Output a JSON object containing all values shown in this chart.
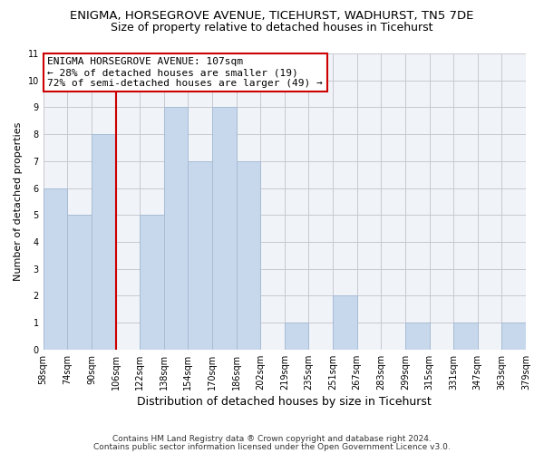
{
  "title": "ENIGMA, HORSEGROVE AVENUE, TICEHURST, WADHURST, TN5 7DE",
  "subtitle": "Size of property relative to detached houses in Ticehurst",
  "xlabel": "Distribution of detached houses by size in Ticehurst",
  "ylabel": "Number of detached properties",
  "footnote1": "Contains HM Land Registry data ® Crown copyright and database right 2024.",
  "footnote2": "Contains public sector information licensed under the Open Government Licence v3.0.",
  "bar_labels": [
    "58sqm",
    "74sqm",
    "90sqm",
    "106sqm",
    "122sqm",
    "138sqm",
    "154sqm",
    "170sqm",
    "186sqm",
    "202sqm",
    "219sqm",
    "235sqm",
    "251sqm",
    "267sqm",
    "283sqm",
    "299sqm",
    "315sqm",
    "331sqm",
    "347sqm",
    "363sqm",
    "379sqm"
  ],
  "bar_values": [
    6,
    5,
    8,
    0,
    5,
    9,
    7,
    9,
    7,
    0,
    1,
    0,
    2,
    0,
    0,
    1,
    0,
    1,
    0,
    1
  ],
  "bar_color": "#c8d8ec",
  "bar_edge_color": "#a8bcd4",
  "property_line_x": 3,
  "property_line_color": "#cc0000",
  "annotation_line1": "ENIGMA HORSEGROVE AVENUE: 107sqm",
  "annotation_line2": "← 28% of detached houses are smaller (19)",
  "annotation_line3": "72% of semi-detached houses are larger (49) →",
  "annotation_box_facecolor": "#ffffff",
  "annotation_box_edgecolor": "#cc0000",
  "ylim": [
    0,
    11
  ],
  "yticks": [
    0,
    1,
    2,
    3,
    4,
    5,
    6,
    7,
    8,
    9,
    10,
    11
  ],
  "grid_color": "#c8c8d0",
  "bg_color": "#f0f4f8",
  "plot_bg_color": "#f0f4f8",
  "title_fontsize": 9.5,
  "subtitle_fontsize": 9,
  "ylabel_fontsize": 8,
  "xlabel_fontsize": 9,
  "tick_fontsize": 7,
  "annot_fontsize": 8,
  "footnote_fontsize": 6.5
}
